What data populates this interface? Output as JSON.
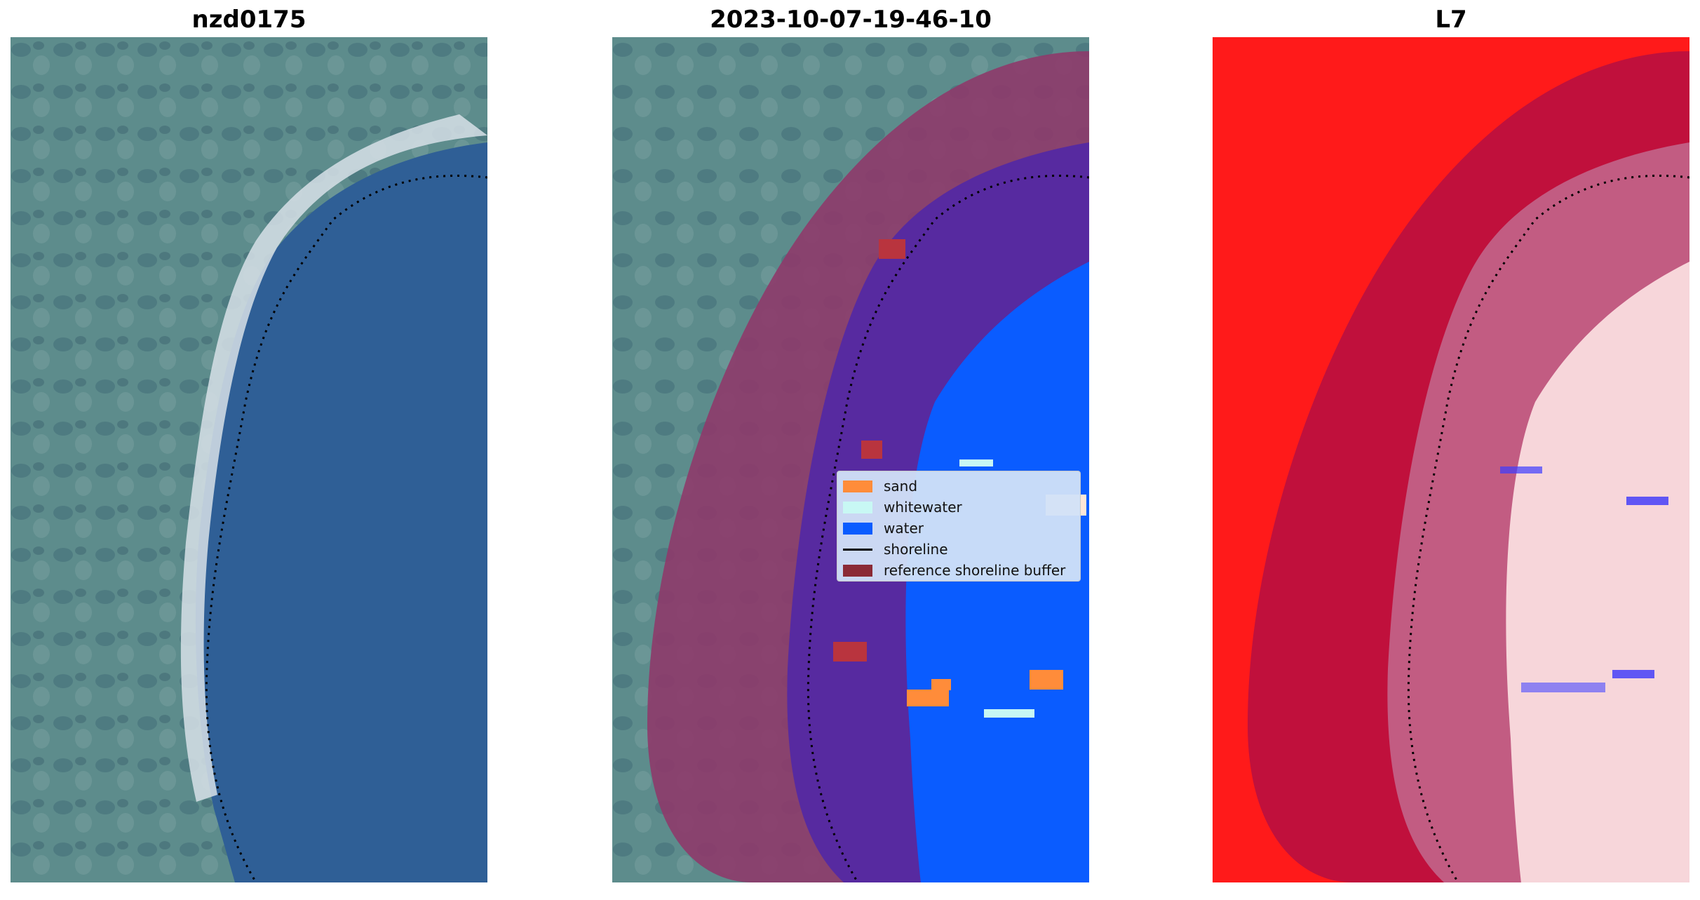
{
  "panels": [
    {
      "title": "nzd0175"
    },
    {
      "title": "2023-10-07-19-46-10"
    },
    {
      "title": "L7"
    }
  ],
  "legend": {
    "items": [
      {
        "label": "sand",
        "color": "#ff8c3a",
        "kind": "patch"
      },
      {
        "label": "whitewater",
        "color": "#c8f8f4",
        "kind": "patch"
      },
      {
        "label": "water",
        "color": "#0a5cff",
        "kind": "patch"
      },
      {
        "label": "shoreline",
        "color": "#000000",
        "kind": "line"
      },
      {
        "label": "reference shoreline buffer",
        "color": "#8b2a36",
        "kind": "patch"
      }
    ]
  },
  "colors": {
    "land": "#5a8a8e",
    "ocean": "#2e5e96",
    "beach": "#cfd8e0",
    "buffer": "#8e3a6a",
    "classified_water": "#572aa0",
    "open_water": "#0a5cff",
    "sand": "#ff8c3a",
    "whitewater": "#c8f8f4",
    "index_high": "#ff1010",
    "index_mid": "#c0103c",
    "index_low": "#f5d8dc"
  }
}
